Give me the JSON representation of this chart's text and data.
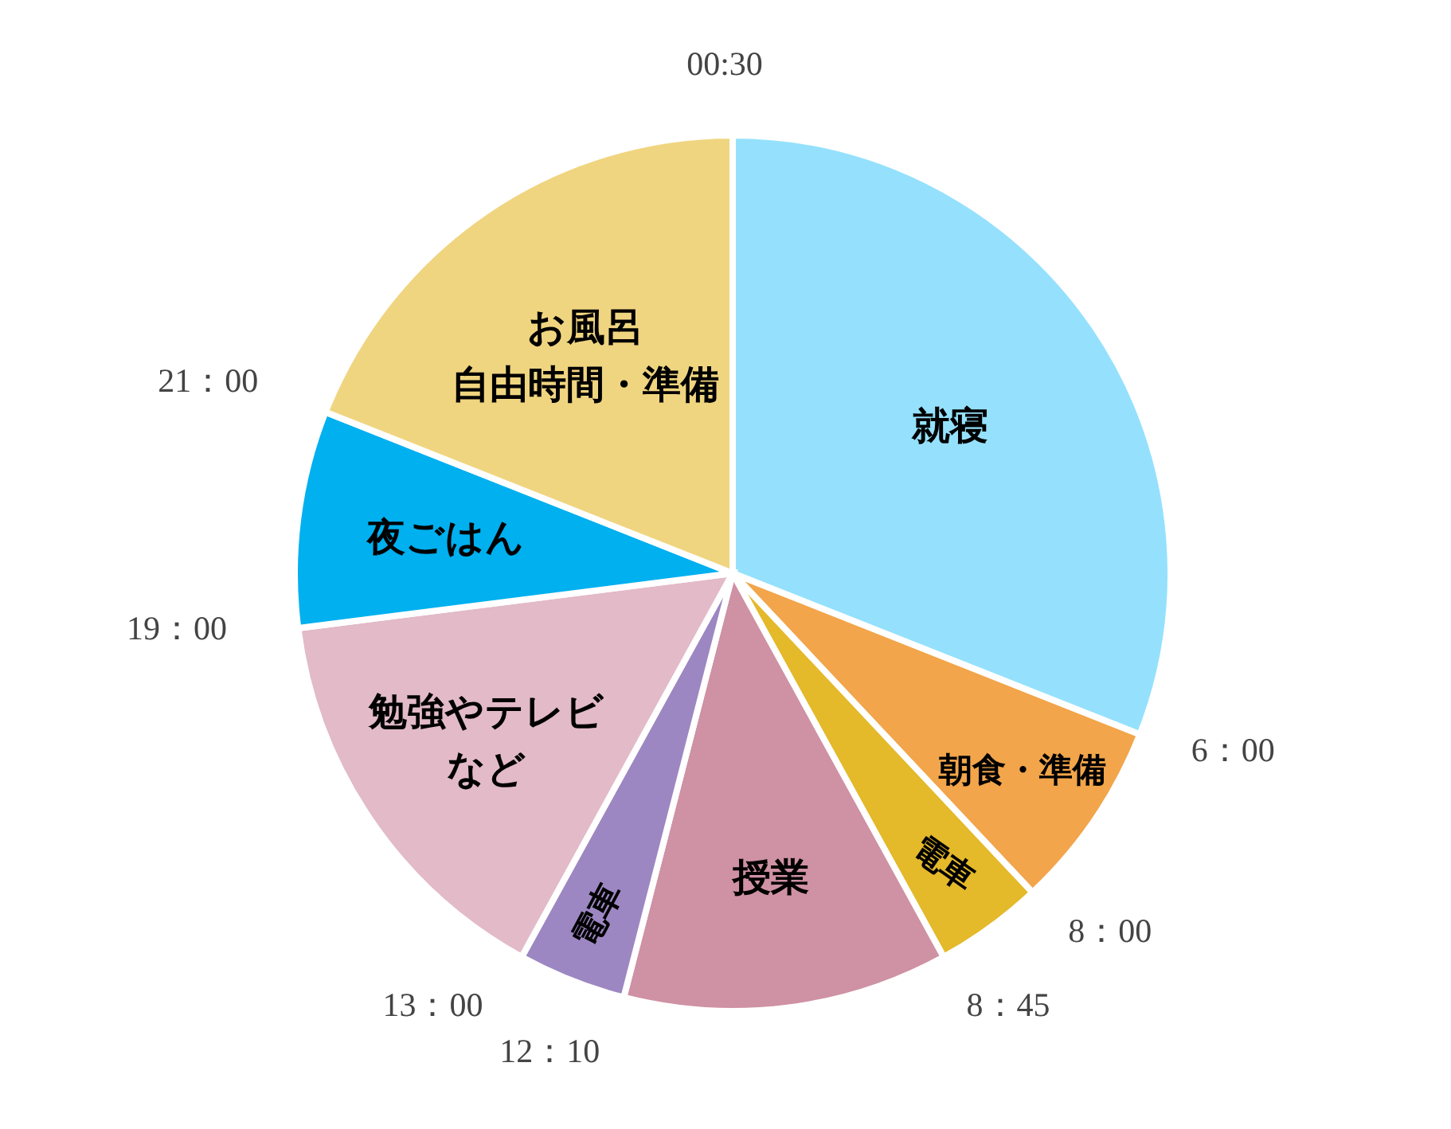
{
  "chart_data": {
    "type": "pie",
    "categories": [
      "就寝",
      "朝食・準備",
      "電車",
      "授業",
      "電車",
      "勉強やテレビなど",
      "夜ごはん",
      "お風呂自由時間・準備"
    ],
    "values": [
      31,
      7,
      4,
      12,
      4,
      15,
      8,
      19
    ],
    "colors": [
      "#95e1fd",
      "#f2a54a",
      "#e4b92a",
      "#cf91a4",
      "#9d87c2",
      "#e2bac8",
      "#00b0ef",
      "#f0d580"
    ],
    "annotations": [
      "00:30",
      "6：00",
      "8：00",
      "8：45",
      "12：10",
      "13：00",
      "19：00",
      "21：00"
    ],
    "legend": false
  }
}
